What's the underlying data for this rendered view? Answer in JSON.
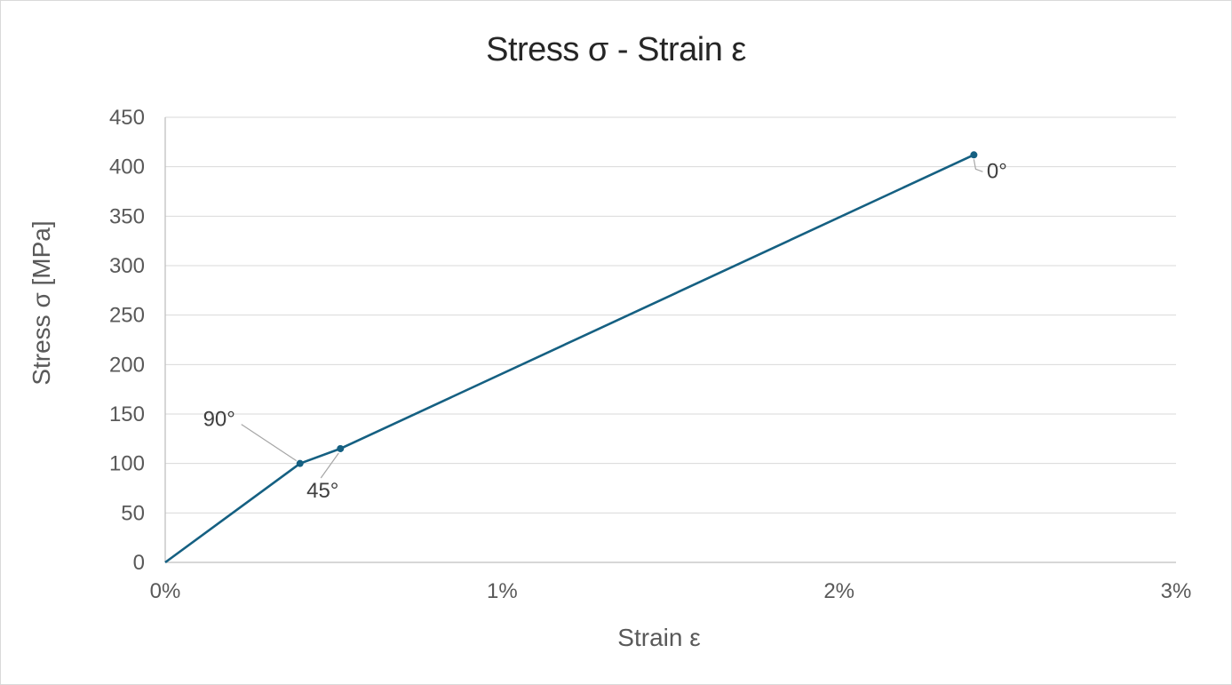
{
  "chart_data": {
    "type": "line",
    "title": "Stress σ - Strain ε",
    "xlabel": "Strain ε",
    "ylabel": "Stress σ [MPa]",
    "xlim": [
      0,
      3
    ],
    "ylim": [
      0,
      450
    ],
    "x_ticks": [
      {
        "value": 0,
        "label": "0%"
      },
      {
        "value": 1,
        "label": "1%"
      },
      {
        "value": 2,
        "label": "2%"
      },
      {
        "value": 3,
        "label": "3%"
      }
    ],
    "y_ticks": [
      0,
      50,
      100,
      150,
      200,
      250,
      300,
      350,
      400,
      450
    ],
    "grid": "horizontal",
    "legend": "none",
    "series": [
      {
        "name": "stress-strain-curve",
        "color": "#156082",
        "marker": "circle",
        "points": [
          {
            "x": 0.0,
            "y": 0,
            "label": ""
          },
          {
            "x": 0.4,
            "y": 100,
            "label": "90°"
          },
          {
            "x": 0.52,
            "y": 115,
            "label": "45°"
          },
          {
            "x": 2.4,
            "y": 412,
            "label": "0°"
          }
        ]
      }
    ],
    "colors": {
      "line": "#156082",
      "gridline": "#d9d9d9",
      "axis_line": "#bfbfbf",
      "tick_text": "#595959",
      "title_text": "#262626",
      "data_label_text": "#3f3f3f",
      "leader_line": "#a6a6a6"
    }
  }
}
